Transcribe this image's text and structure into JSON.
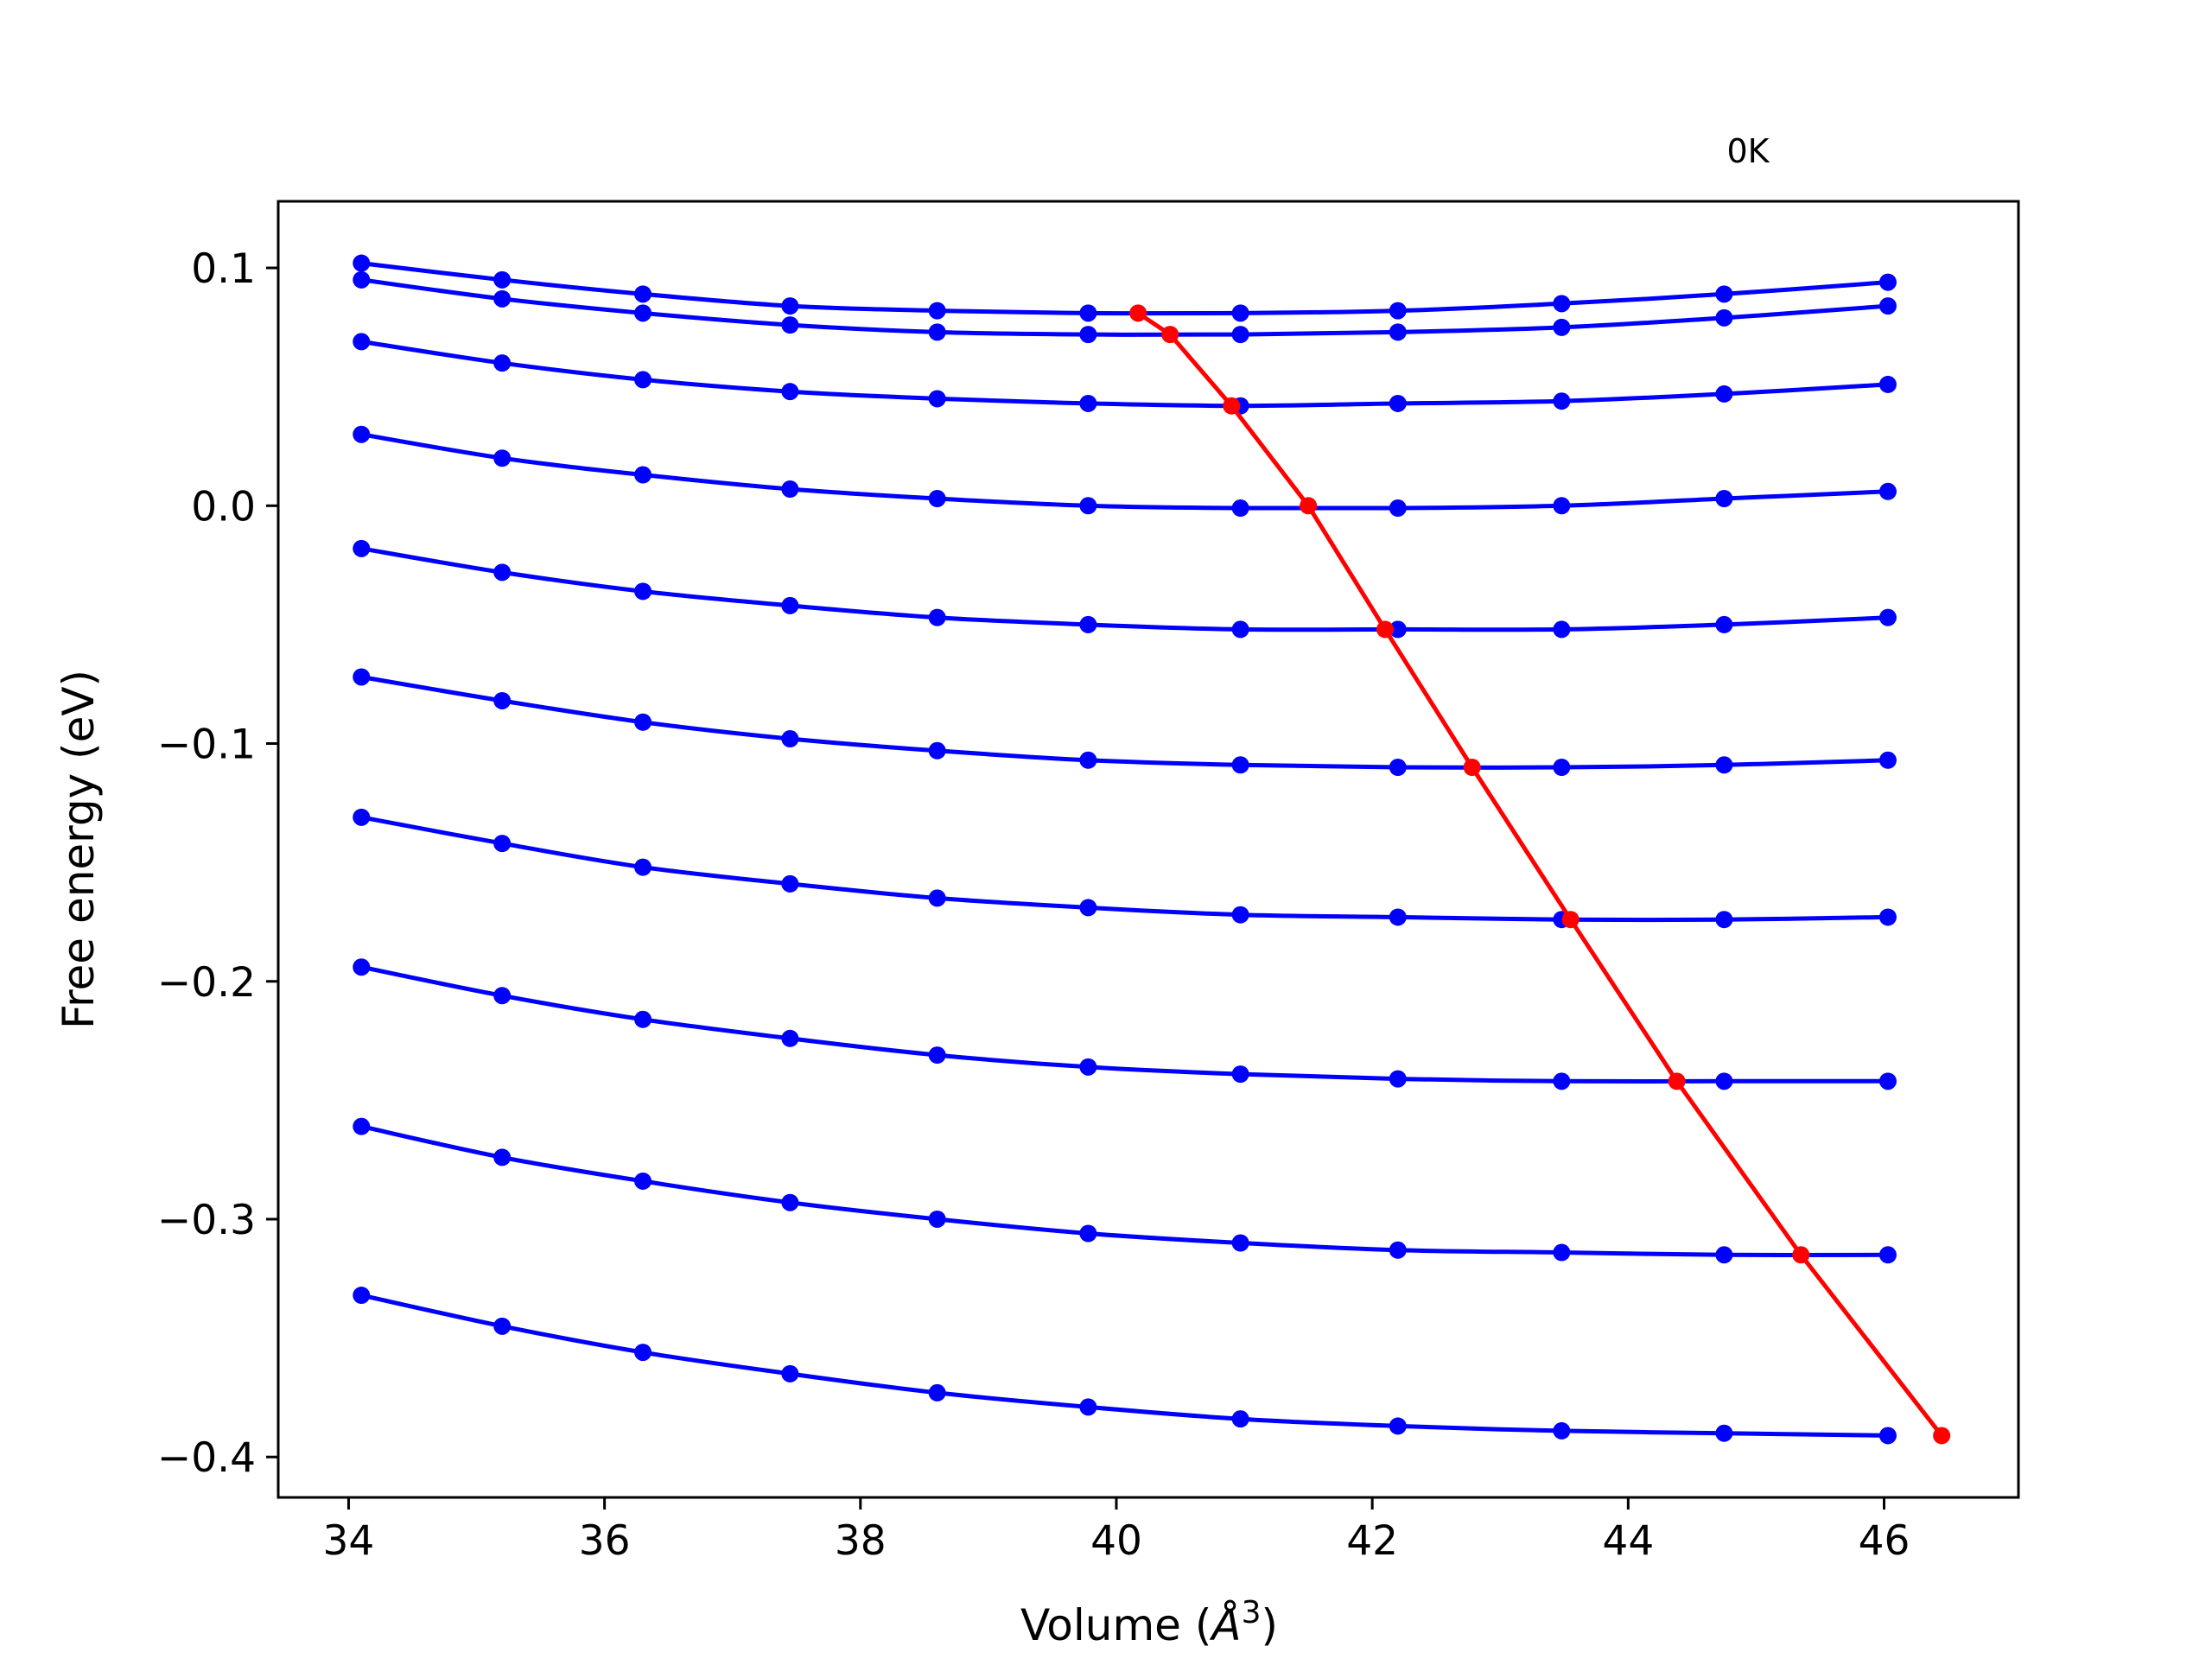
{
  "chart_data": {
    "type": "line",
    "annotation": "0K",
    "xlabel_prefix": "Volume (",
    "xlabel_unit": "Å",
    "xlabel_exp": "3",
    "xlabel_suffix": ")",
    "ylabel": "Free energy (eV)",
    "xlim": [
      33.45,
      47.05
    ],
    "ylim": [
      -0.417,
      0.128
    ],
    "xticks": [
      34,
      36,
      38,
      40,
      42,
      44,
      46
    ],
    "xtick_labels": [
      "34",
      "36",
      "38",
      "40",
      "42",
      "44",
      "46"
    ],
    "yticks": [
      0.1,
      0.0,
      -0.1,
      -0.2,
      -0.3,
      -0.4
    ],
    "ytick_labels": [
      "0.1",
      "0.0",
      "−0.1",
      "−0.2",
      "−0.3",
      "−0.4"
    ],
    "grid": false,
    "curve_color": "#0000ff",
    "min_color": "#ff0000",
    "x": [
      34.1,
      35.2,
      36.3,
      37.45,
      38.6,
      39.78,
      40.97,
      42.2,
      43.48,
      44.75,
      46.03
    ],
    "series": [
      {
        "values": [
          0.102,
          0.095,
          0.089,
          0.084,
          0.082,
          0.081,
          0.081,
          0.082,
          0.085,
          0.089,
          0.094
        ]
      },
      {
        "values": [
          0.095,
          0.087,
          0.081,
          0.076,
          0.073,
          0.072,
          0.072,
          0.073,
          0.075,
          0.079,
          0.084
        ]
      },
      {
        "values": [
          0.069,
          0.06,
          0.053,
          0.048,
          0.045,
          0.043,
          0.042,
          0.043,
          0.044,
          0.047,
          0.051
        ]
      },
      {
        "values": [
          0.03,
          0.02,
          0.013,
          0.007,
          0.003,
          0.0,
          -0.001,
          -0.001,
          0.0,
          0.003,
          0.006
        ]
      },
      {
        "values": [
          -0.018,
          -0.028,
          -0.036,
          -0.042,
          -0.047,
          -0.05,
          -0.052,
          -0.052,
          -0.052,
          -0.05,
          -0.047
        ]
      },
      {
        "values": [
          -0.072,
          -0.082,
          -0.091,
          -0.098,
          -0.103,
          -0.107,
          -0.109,
          -0.11,
          -0.11,
          -0.109,
          -0.107
        ]
      },
      {
        "values": [
          -0.131,
          -0.142,
          -0.152,
          -0.159,
          -0.165,
          -0.169,
          -0.172,
          -0.173,
          -0.174,
          -0.174,
          -0.173
        ]
      },
      {
        "values": [
          -0.194,
          -0.206,
          -0.216,
          -0.224,
          -0.231,
          -0.236,
          -0.239,
          -0.241,
          -0.242,
          -0.242,
          -0.242
        ]
      },
      {
        "values": [
          -0.261,
          -0.274,
          -0.284,
          -0.293,
          -0.3,
          -0.306,
          -0.31,
          -0.313,
          -0.314,
          -0.315,
          -0.315
        ]
      },
      {
        "values": [
          -0.332,
          -0.345,
          -0.356,
          -0.365,
          -0.373,
          -0.379,
          -0.384,
          -0.387,
          -0.389,
          -0.39,
          -0.391
        ]
      }
    ],
    "minima": {
      "x": [
        40.17,
        40.42,
        40.9,
        41.5,
        42.1,
        42.78,
        43.55,
        44.38,
        45.35,
        46.45
      ],
      "values": [
        0.081,
        0.072,
        0.042,
        0.0,
        -0.052,
        -0.11,
        -0.174,
        -0.242,
        -0.315,
        -0.391
      ]
    }
  }
}
